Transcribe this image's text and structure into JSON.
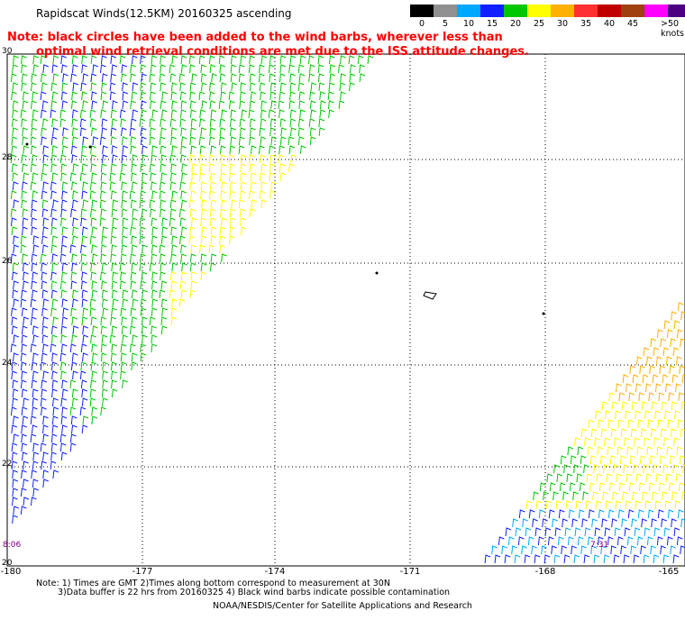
{
  "title": "Rapidscat Winds(12.5KM) 20160325 ascending",
  "note": {
    "line1": "Note: black circles have been added to the wind barbs, wherever less than",
    "line2": "optimal wind retrieval conditions are met due to the ISS attitude changes."
  },
  "legend": {
    "labels": [
      "0",
      "5",
      "10",
      "15",
      "20",
      "25",
      "30",
      "35",
      "40",
      "45",
      ">50 knots"
    ],
    "colors": [
      "#000000",
      "#909090",
      "#00a8ff",
      "#1020ff",
      "#00c800",
      "#ffff00",
      "#ffb000",
      "#ff3030",
      "#c00000",
      "#a04010",
      "#ff00ff",
      "#4b0082"
    ]
  },
  "axes": {
    "lat_labels": [
      "30",
      "28",
      "26",
      "24",
      "22",
      "20"
    ],
    "lon_labels": [
      "-180",
      "-177",
      "-174",
      "-171",
      "-168",
      "-165"
    ]
  },
  "pass_times": {
    "left": "8:06",
    "right": "7:31"
  },
  "footnote": {
    "line1": "Note: 1) Times are GMT 2)Times along bottom correspond to measurement at 30N",
    "line2": "3)Data buffer is 22 hrs from 20160325 4) Black wind barbs indicate possible contamination"
  },
  "credit": "NOAA/NESDIS/Center for Satellite Applications and Research"
}
